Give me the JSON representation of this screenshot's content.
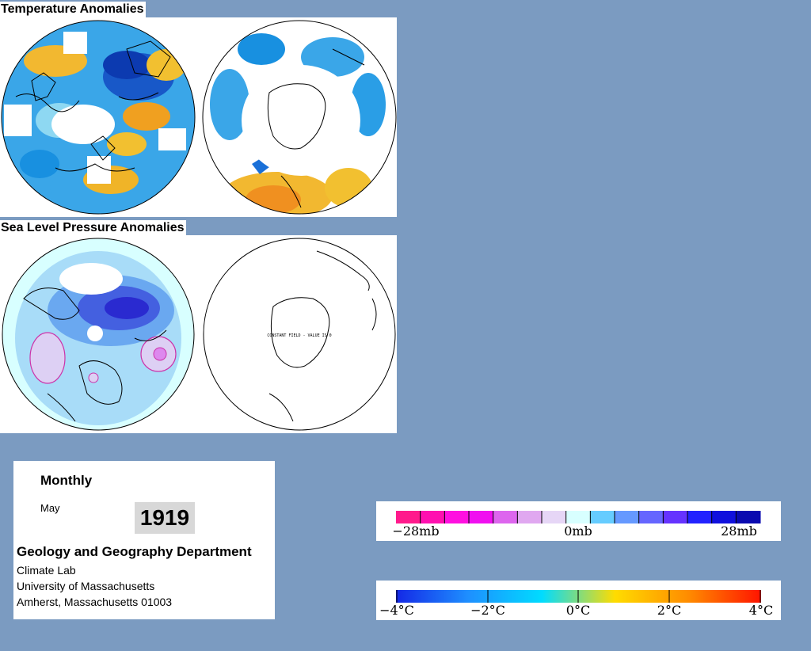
{
  "temperature_section": {
    "title": "Temperature Anomalies"
  },
  "pressure_section": {
    "title": "Sea Level Pressure Anomalies",
    "southern_note": "CONSTANT FIELD - VALUE IS 0"
  },
  "info": {
    "mode": "Monthly",
    "month": "May",
    "year": "1919",
    "department": "Geology and Geography Department",
    "lines": [
      "Climate Lab",
      "University of Massachusetts",
      "Amherst, Massachusetts 01003"
    ]
  },
  "pressure_legend": {
    "labels": [
      "−28mb",
      "0mb",
      "28mb"
    ],
    "colors": [
      "#ff1a8c",
      "#ff10b0",
      "#ff10e0",
      "#f010f0",
      "#dd66ee",
      "#e0a8f0",
      "#e6d6f6",
      "#d8ffff",
      "#66ccff",
      "#6699ff",
      "#6666ff",
      "#6633ff",
      "#2222ff",
      "#1010dd",
      "#0a0ab0"
    ]
  },
  "temperature_legend": {
    "labels": [
      "−4°C",
      "−2°C",
      "0°C",
      "2°C",
      "4°C"
    ],
    "colors": [
      "#1428e6",
      "#1e90ff",
      "#00dcff",
      "#ffdc00",
      "#ff8c00",
      "#ff1400"
    ]
  }
}
